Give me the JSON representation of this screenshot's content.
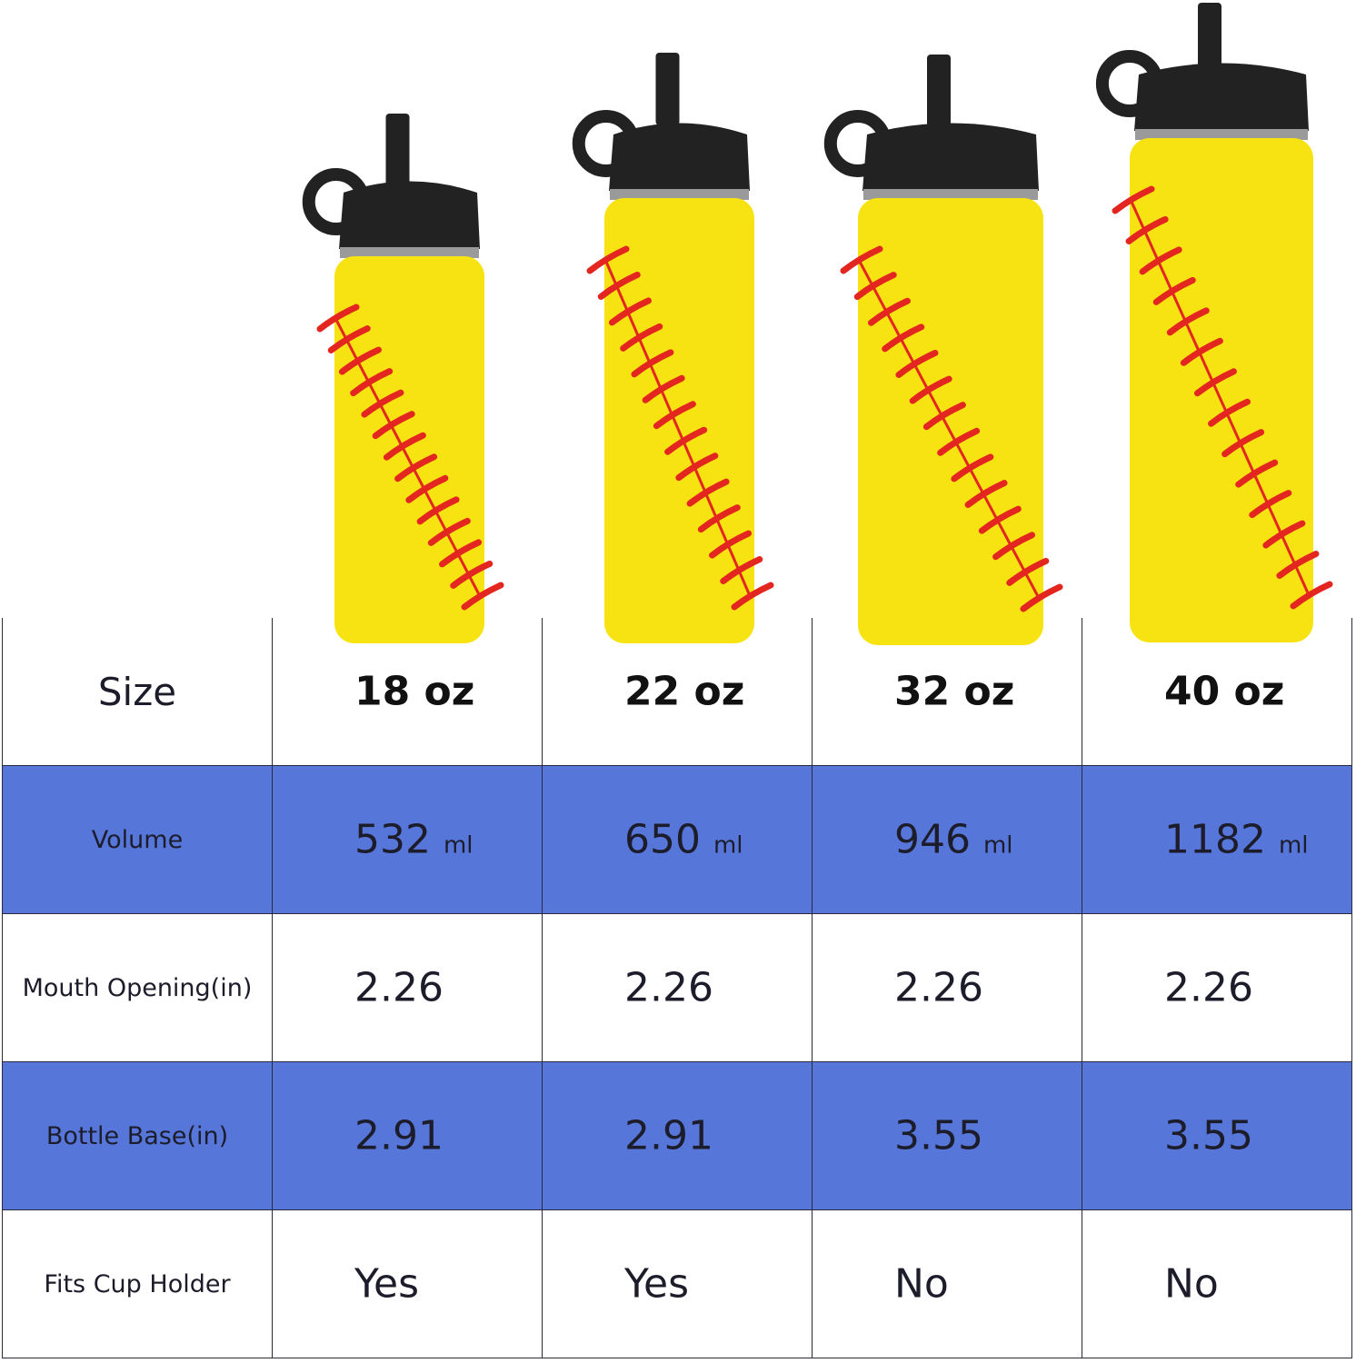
{
  "colors": {
    "row_highlight": "#5676DA",
    "bottle_body": "#F7E312",
    "stitch": "#E3261F",
    "cap": "#222222"
  },
  "table": {
    "header": {
      "label": "Size",
      "values": [
        "18 oz",
        "22 oz",
        "32 oz",
        "40 oz"
      ]
    },
    "rows": [
      {
        "label": "Volume",
        "values": [
          "532",
          "650",
          "946",
          "1182"
        ],
        "unit": "ml",
        "highlight": true
      },
      {
        "label": "Mouth Opening(in)",
        "values": [
          "2.26",
          "2.26",
          "2.26",
          "2.26"
        ],
        "highlight": false
      },
      {
        "label": "Bottle Base(in)",
        "values": [
          "2.91",
          "2.91",
          "3.55",
          "3.55"
        ],
        "highlight": true
      },
      {
        "label": "Fits Cup Holder",
        "values": [
          "Yes",
          "Yes",
          "No",
          "No"
        ],
        "highlight": false
      }
    ]
  }
}
